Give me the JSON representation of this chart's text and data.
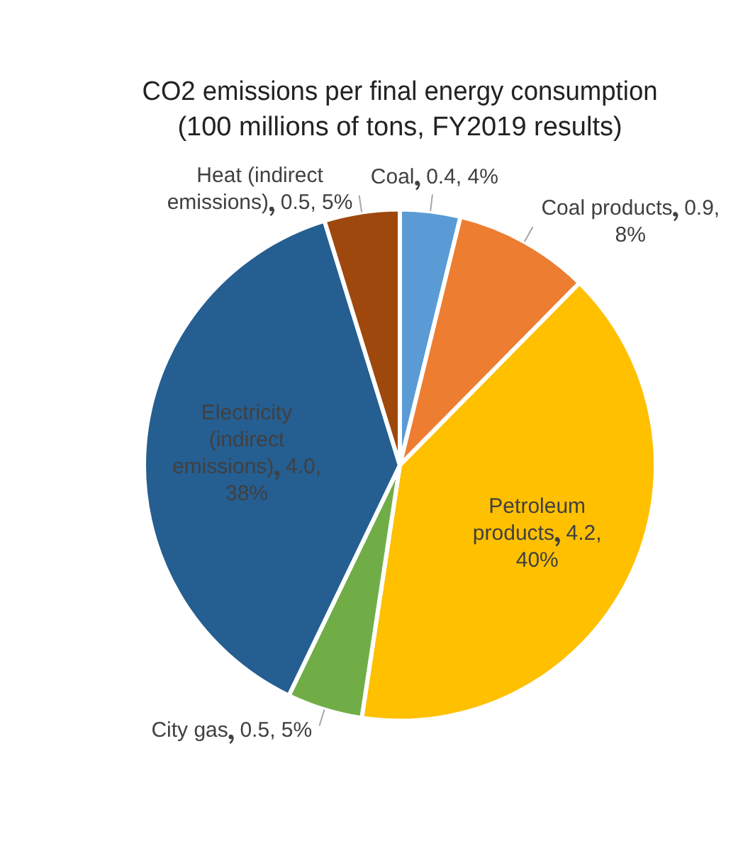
{
  "chart_data": {
    "type": "pie",
    "title": "CO2 emissions per final energy consumption",
    "subtitle": "(100 millions of tons, FY2019 results)",
    "categories": [
      "Coal",
      "Coal products",
      "Petroleum products",
      "City gas",
      "Electricity (indirect emissions)",
      "Heat (indirect emissions)"
    ],
    "values": [
      0.4,
      0.9,
      4.2,
      0.5,
      4.0,
      0.5
    ],
    "value_labels": [
      "0.4, 4%",
      "0.9, 8%",
      "4.2, 40%",
      "0.5, 5%",
      "4.0, 38%",
      "0.5, 5%"
    ],
    "colors": [
      "#5b9bd5",
      "#ed7d31",
      "#ffc000",
      "#70ad47",
      "#255e91",
      "#9e480e"
    ],
    "legend": false
  }
}
